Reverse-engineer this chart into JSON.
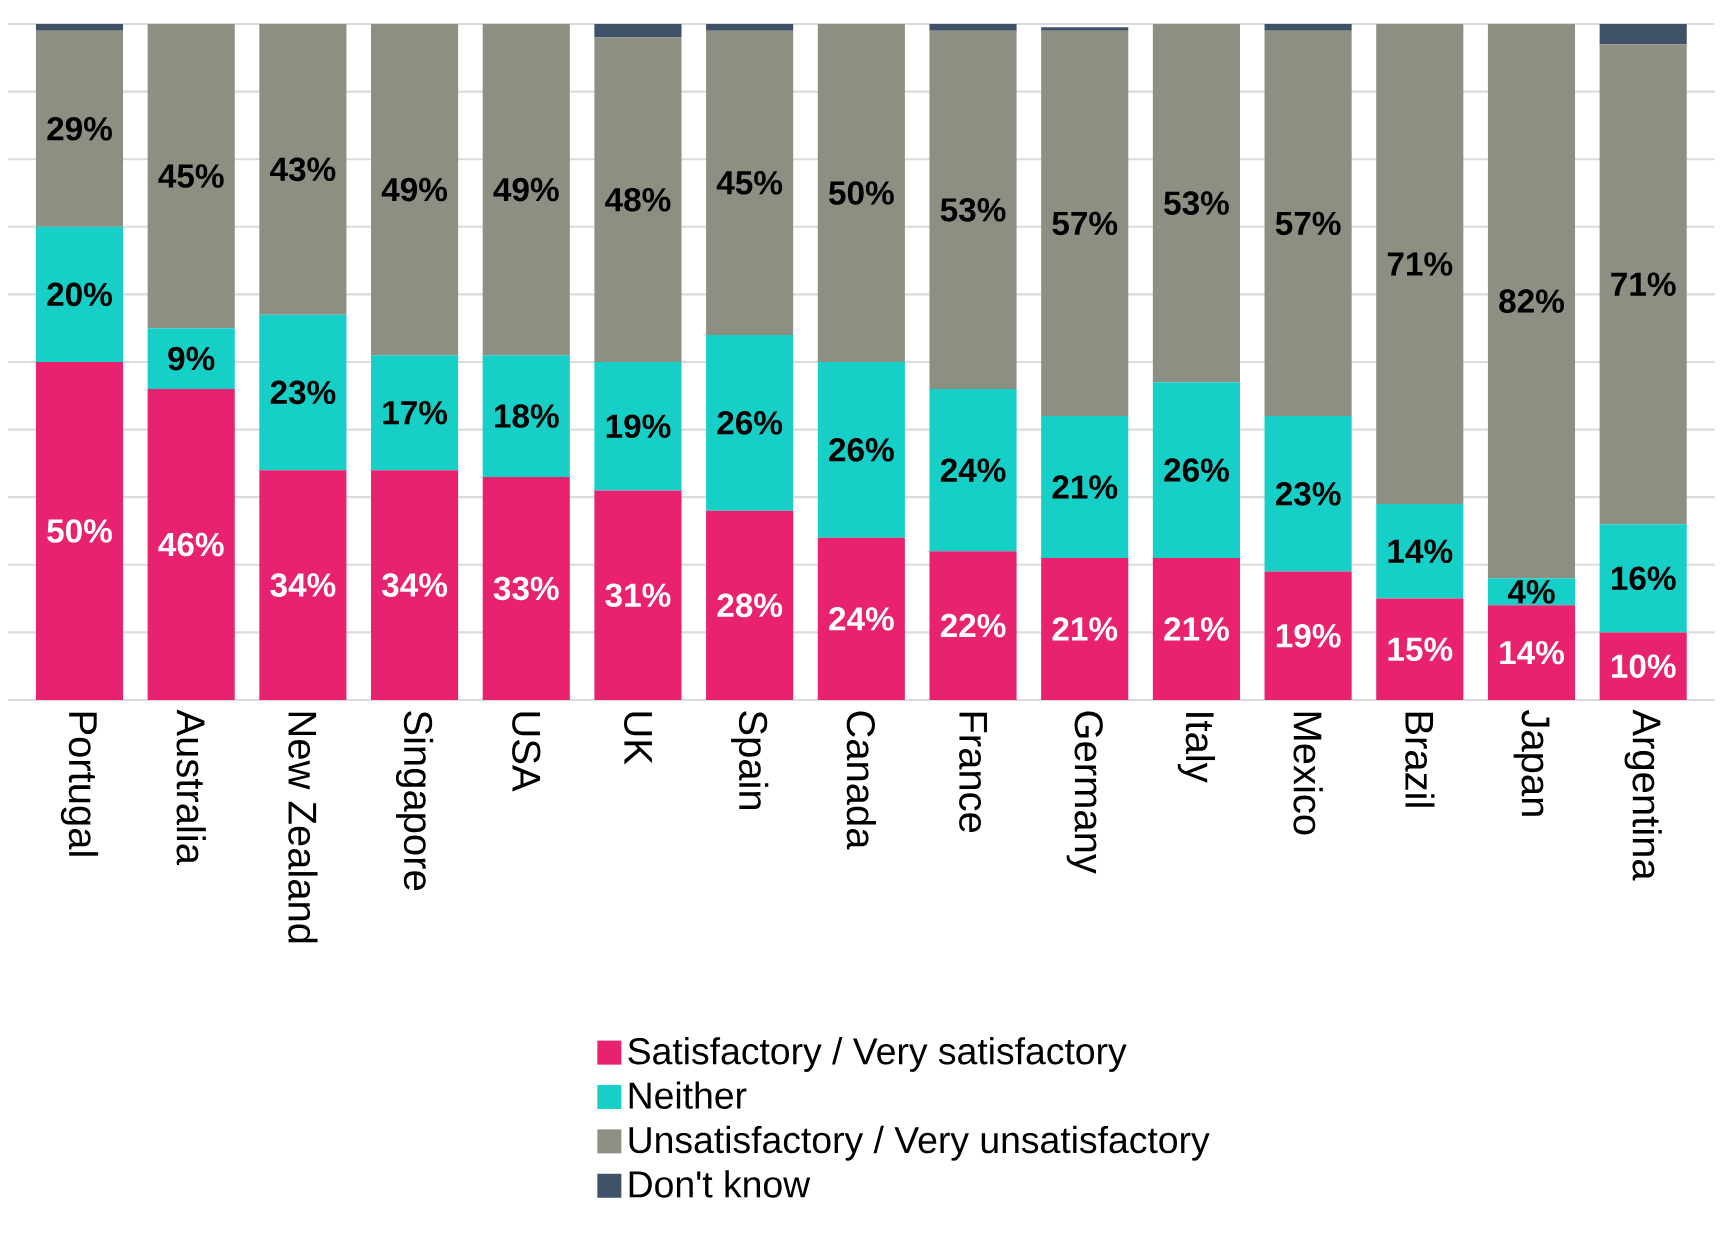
{
  "chart_data": {
    "type": "bar",
    "stacked": true,
    "categories": [
      "Portugal",
      "Australia",
      "New Zealand",
      "Singapore",
      "USA",
      "UK",
      "Spain",
      "Canada",
      "France",
      "Germany",
      "Italy",
      "Mexico",
      "Brazil",
      "Japan",
      "Argentina"
    ],
    "series": [
      {
        "name": "Satisfactory / Very satisfactory",
        "color": "#e8226f",
        "values": [
          50,
          46,
          34,
          34,
          33,
          31,
          28,
          24,
          22,
          21,
          21,
          19,
          15,
          14,
          10
        ],
        "value_labels": [
          "50%",
          "46%",
          "34%",
          "34%",
          "33%",
          "31%",
          "28%",
          "24%",
          "22%",
          "21%",
          "21%",
          "19%",
          "15%",
          "14%",
          "10%"
        ]
      },
      {
        "name": "Neither",
        "color": "#16d0c8",
        "values": [
          20,
          9,
          23,
          17,
          18,
          19,
          26,
          26,
          24,
          21,
          26,
          23,
          14,
          4,
          16
        ],
        "value_labels": [
          "20%",
          "9%",
          "23%",
          "17%",
          "18%",
          "19%",
          "26%",
          "26%",
          "24%",
          "21%",
          "26%",
          "23%",
          "14%",
          "4%",
          "16%"
        ]
      },
      {
        "name": "Unsatisfactory / Very unsatisfactory",
        "color": "#8e8f83",
        "values": [
          29,
          45,
          43,
          49,
          49,
          48,
          45,
          50,
          53,
          57,
          53,
          57,
          71,
          82,
          71
        ],
        "value_labels": [
          "29%",
          "45%",
          "43%",
          "49%",
          "49%",
          "48%",
          "45%",
          "50%",
          "53%",
          "57%",
          "53%",
          "57%",
          "71%",
          "82%",
          "71%"
        ]
      },
      {
        "name": "Don't know",
        "color": "#3e5166",
        "values": [
          1,
          0,
          0,
          0,
          0,
          2,
          1,
          0,
          1,
          0.5,
          0,
          1,
          0,
          0,
          3
        ]
      }
    ],
    "tick_labels": "x",
    "grid": "y",
    "legend": "bottom"
  }
}
